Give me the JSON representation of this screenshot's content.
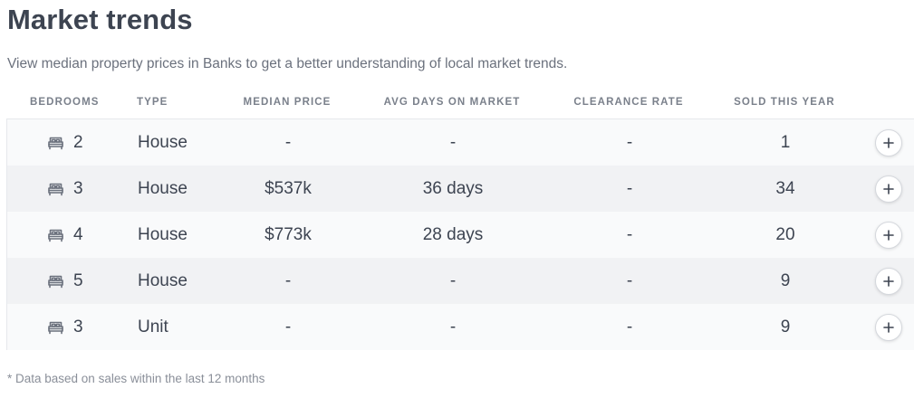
{
  "header": {
    "title": "Market trends",
    "subtitle": "View median property prices in Banks to get a better understanding of local market trends."
  },
  "table": {
    "columns": {
      "bedrooms": "Bedrooms",
      "type": "Type",
      "median_price": "Median price",
      "avg_days": "Avg days on market",
      "clearance": "Clearance rate",
      "sold": "Sold this year"
    },
    "rows": [
      {
        "bedrooms": "2",
        "type": "House",
        "median_price": "-",
        "avg_days": "-",
        "clearance": "-",
        "sold": "1"
      },
      {
        "bedrooms": "3",
        "type": "House",
        "median_price": "$537k",
        "avg_days": "36 days",
        "clearance": "-",
        "sold": "34"
      },
      {
        "bedrooms": "4",
        "type": "House",
        "median_price": "$773k",
        "avg_days": "28 days",
        "clearance": "-",
        "sold": "20"
      },
      {
        "bedrooms": "5",
        "type": "House",
        "median_price": "-",
        "avg_days": "-",
        "clearance": "-",
        "sold": "9"
      },
      {
        "bedrooms": "3",
        "type": "Unit",
        "median_price": "-",
        "avg_days": "-",
        "clearance": "-",
        "sold": "9"
      }
    ],
    "row_icon": "bed-icon",
    "action_icon": "plus-icon"
  },
  "footnote": "* Data based on sales within the last 12 months",
  "colors": {
    "text": "#3d4451",
    "muted": "#6b717d",
    "row_odd": "#f9fafb",
    "row_even": "#f1f2f4"
  }
}
